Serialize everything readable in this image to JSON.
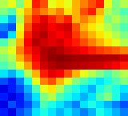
{
  "chart_data": {
    "type": "heatmap",
    "tick_labels": false,
    "color_range": [
      0,
      100
    ],
    "cells": [
      [
        55,
        60,
        50,
        65,
        85,
        80,
        60,
        65,
        60,
        70,
        75,
        80,
        85,
        60,
        50,
        55
      ],
      [
        50,
        45,
        60,
        70,
        80,
        75,
        70,
        75,
        65,
        70,
        80,
        85,
        70,
        55,
        50,
        45
      ],
      [
        40,
        30,
        55,
        75,
        85,
        90,
        85,
        80,
        85,
        70,
        75,
        70,
        65,
        50,
        55,
        50
      ],
      [
        25,
        20,
        60,
        80,
        90,
        92,
        88,
        90,
        92,
        80,
        70,
        65,
        60,
        55,
        50,
        45
      ],
      [
        20,
        35,
        65,
        85,
        92,
        95,
        90,
        88,
        90,
        82,
        75,
        70,
        65,
        60,
        55,
        50
      ],
      [
        45,
        55,
        70,
        88,
        95,
        92,
        90,
        92,
        88,
        85,
        80,
        75,
        70,
        65,
        60,
        55
      ],
      [
        55,
        60,
        75,
        85,
        90,
        95,
        97,
        95,
        92,
        90,
        88,
        85,
        82,
        80,
        78,
        75
      ],
      [
        50,
        55,
        70,
        80,
        88,
        95,
        98,
        99,
        98,
        97,
        97,
        96,
        96,
        95,
        95,
        92
      ],
      [
        45,
        50,
        60,
        72,
        85,
        92,
        95,
        97,
        96,
        95,
        94,
        93,
        92,
        90,
        88,
        85
      ],
      [
        35,
        30,
        40,
        55,
        70,
        85,
        90,
        88,
        80,
        70,
        60,
        55,
        50,
        45,
        50,
        55
      ],
      [
        20,
        15,
        25,
        40,
        60,
        75,
        80,
        70,
        60,
        50,
        45,
        40,
        35,
        40,
        45,
        50
      ],
      [
        10,
        15,
        20,
        30,
        45,
        60,
        65,
        55,
        45,
        40,
        35,
        30,
        40,
        45,
        40,
        35
      ],
      [
        15,
        10,
        15,
        25,
        35,
        50,
        55,
        45,
        40,
        35,
        30,
        35,
        45,
        50,
        40,
        30
      ],
      [
        10,
        20,
        15,
        20,
        30,
        45,
        40,
        35,
        30,
        25,
        35,
        40,
        35,
        30,
        25,
        20
      ],
      [
        15,
        10,
        20,
        25,
        35,
        40,
        35,
        30,
        35,
        30,
        25,
        30,
        40,
        35,
        30,
        25
      ]
    ]
  }
}
